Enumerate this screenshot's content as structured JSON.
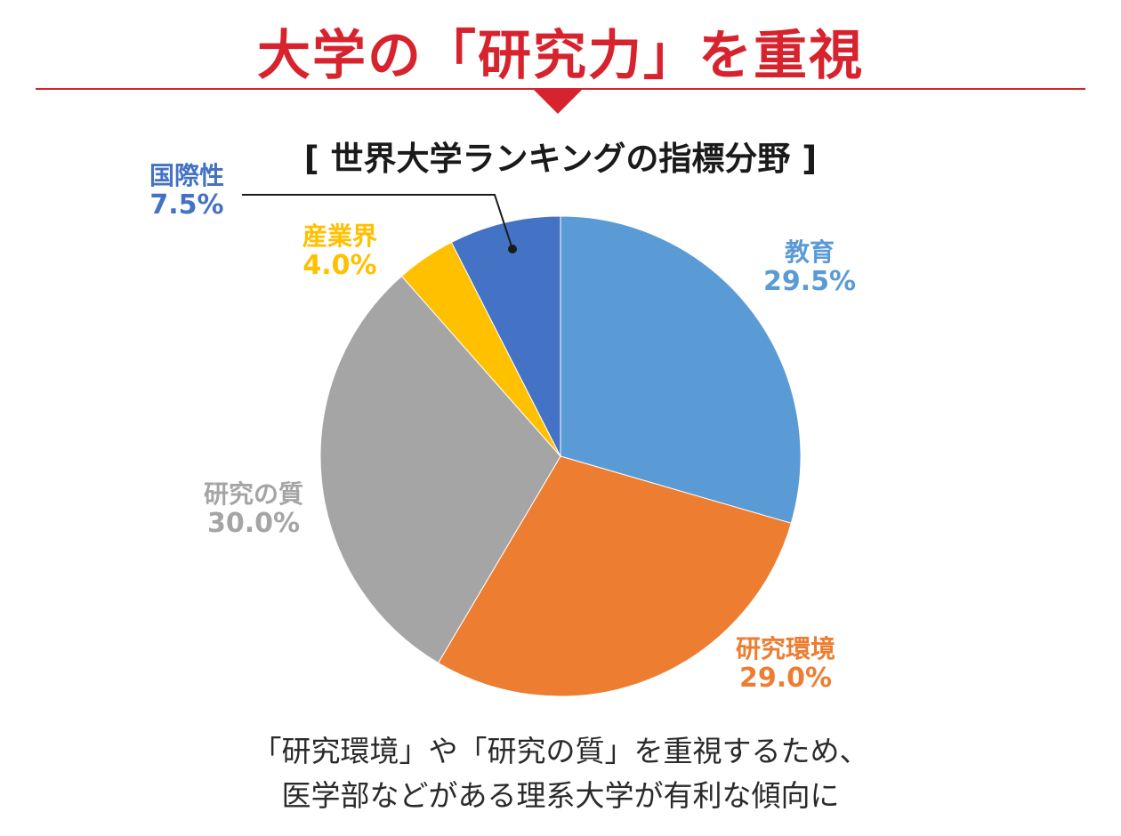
{
  "headline": "大学の「研究力」を重視",
  "caption": {
    "line1": "「研究環境」や「研究の質」を重視するため、",
    "line2": "医学部などがある理系大学が有利な傾向に"
  },
  "colors": {
    "accent": "#d7232e"
  },
  "chart_data": {
    "type": "pie",
    "title": "[ 世界大学ランキングの指標分野 ]",
    "unit": "%",
    "slices": [
      {
        "label": "教育",
        "value": 29.5,
        "display": "29.5%",
        "color": "#5b9bd5"
      },
      {
        "label": "研究環境",
        "value": 29.0,
        "display": "29.0%",
        "color": "#ed7d31"
      },
      {
        "label": "研究の質",
        "value": 30.0,
        "display": "30.0%",
        "color": "#a5a5a5"
      },
      {
        "label": "産業界",
        "value": 4.0,
        "display": "4.0%",
        "color": "#ffc000"
      },
      {
        "label": "国際性",
        "value": 7.5,
        "display": "7.5%",
        "color": "#4472c4"
      }
    ],
    "start": "12 o'clock",
    "direction": "clockwise",
    "legend": "none"
  }
}
